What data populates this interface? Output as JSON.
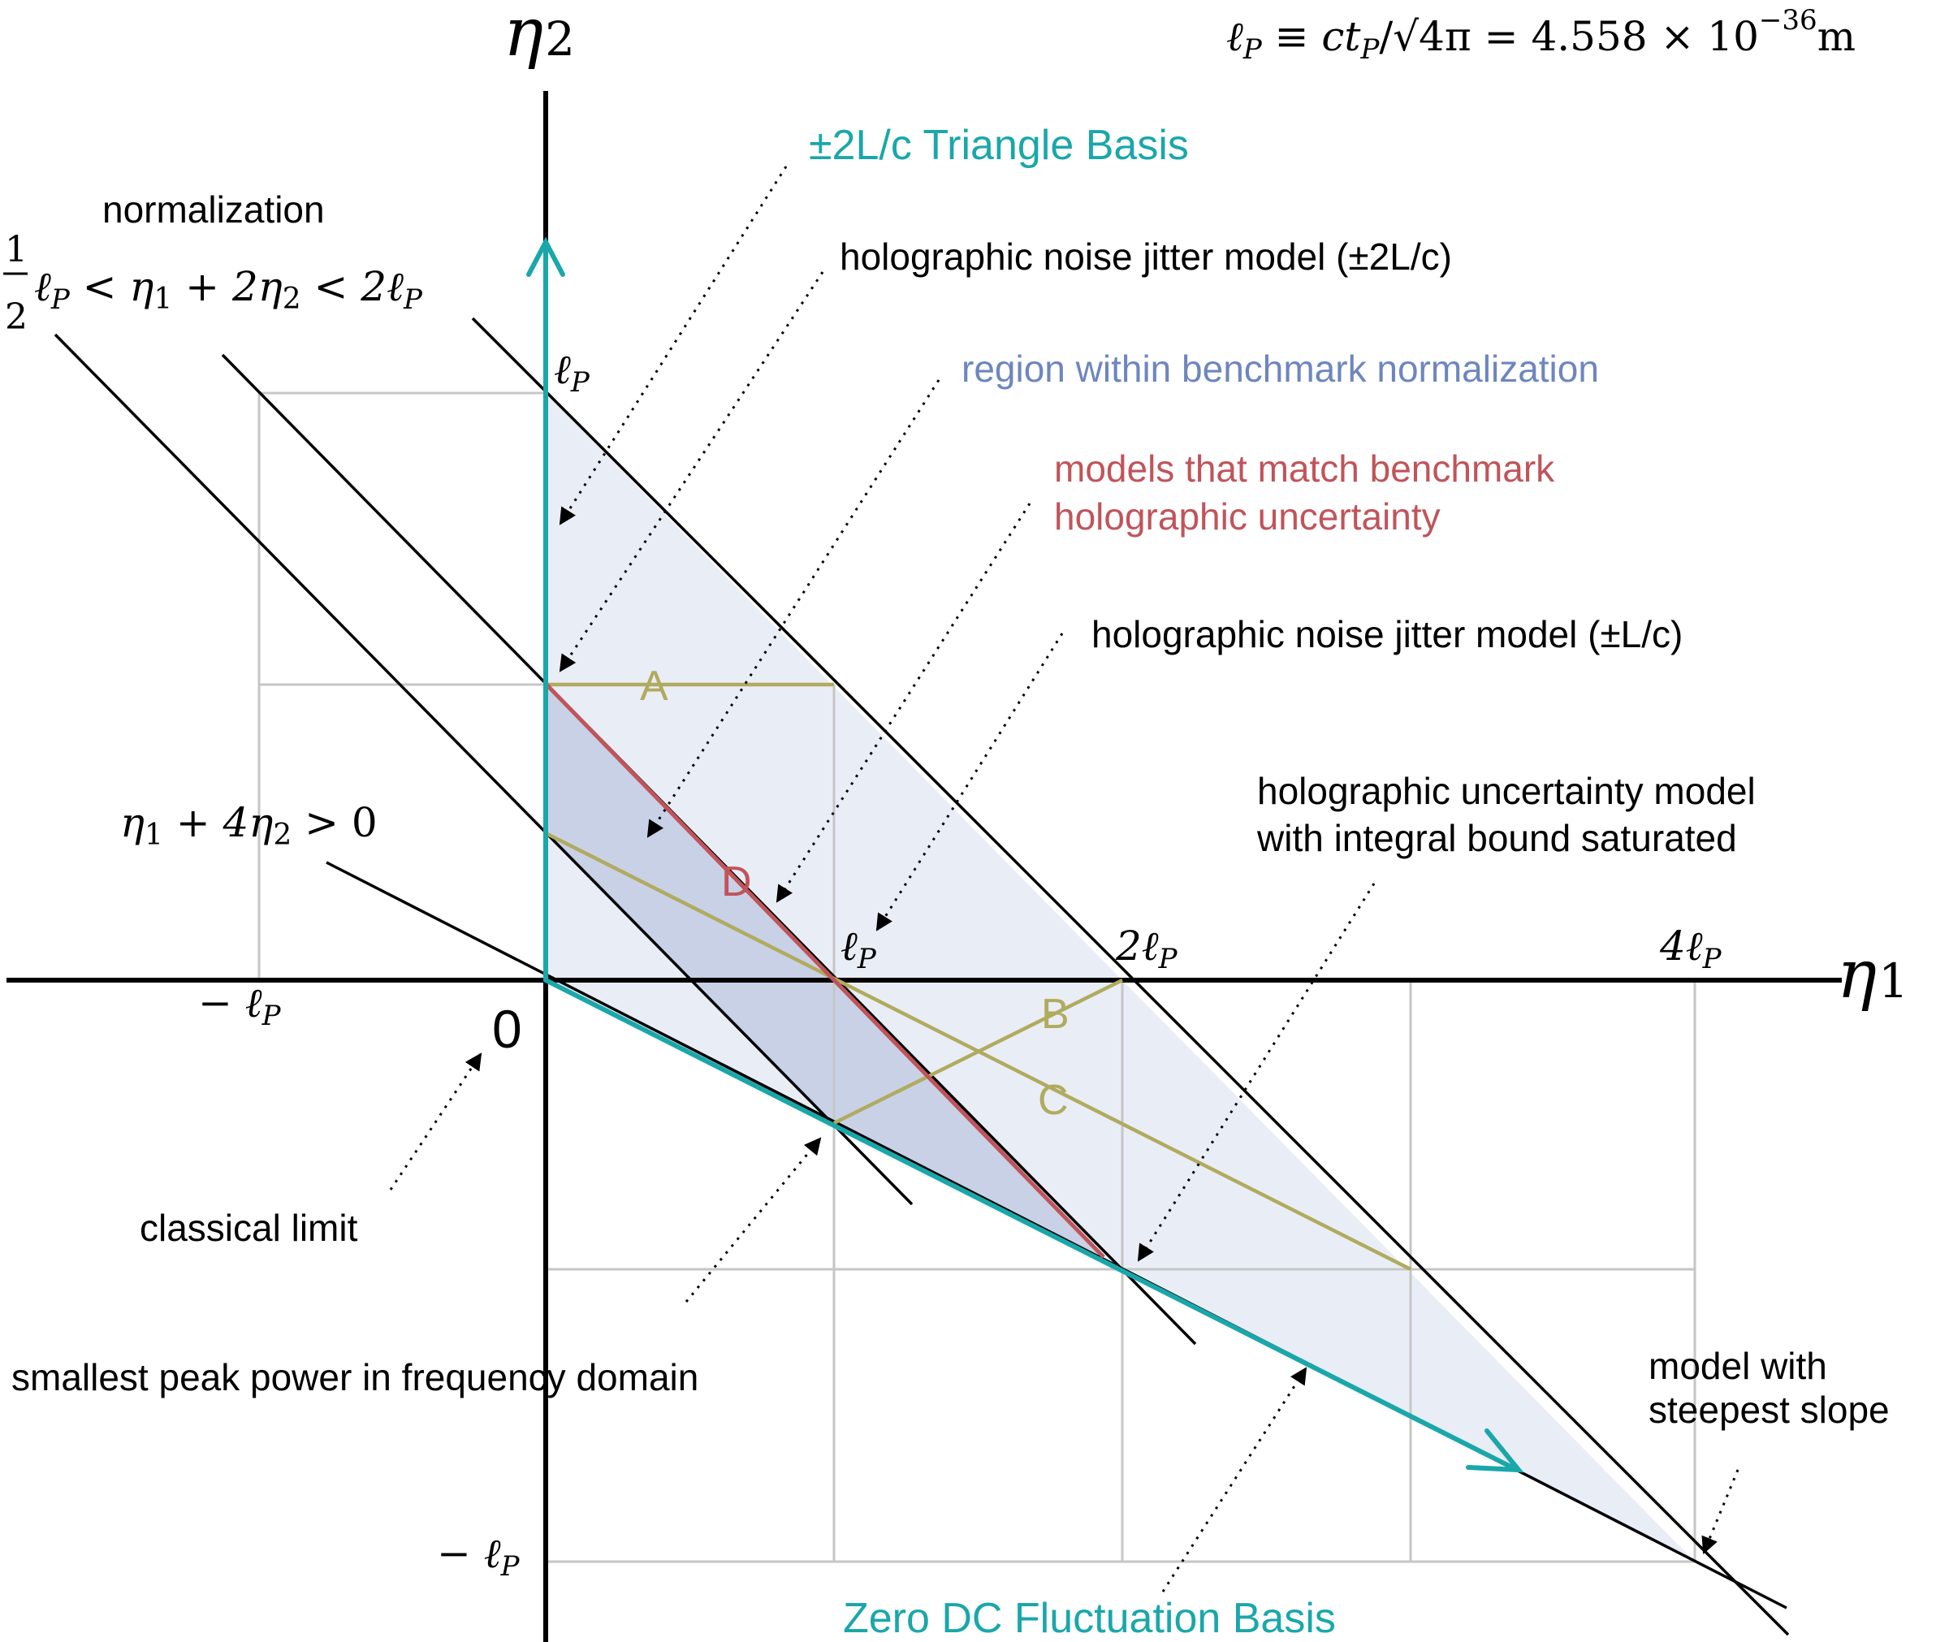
{
  "axes": {
    "x_label": "η",
    "x_sub": "1",
    "y_label": "η",
    "y_sub": "2",
    "origin": "0"
  },
  "ticks": {
    "x_neg_lp": "− ℓ",
    "x_lp": "ℓ",
    "x_2lp": "2ℓ",
    "x_4lp": "4ℓ",
    "y_lp": "ℓ",
    "y_neg_lp": "− ℓ",
    "sub_P": "P"
  },
  "formula": {
    "planck_def_lhs": "ℓ",
    "planck_def_mid": " ≡ ct",
    "planck_def_sqrt": "/√4π = 4.558 × 10",
    "planck_def_exp": "−36",
    "planck_def_unit": "m",
    "norm_frac_num": "1",
    "norm_frac_den": "2",
    "norm_ineq_a": "ℓ",
    "norm_ineq_b": " < η",
    "norm_ineq_c": " + 2η",
    "norm_ineq_d": " < 2ℓ",
    "positivity": "η",
    "positivity_b": " + 4η",
    "positivity_c": " > 0"
  },
  "labels": {
    "triangle_basis": "±2L/c Triangle Basis",
    "normalization": "normalization",
    "jitter_2l": "holographic noise jitter model  (±2L/c)",
    "region_norm": "region within benchmark normalization",
    "match_line1": "models that match benchmark",
    "match_line2": "holographic uncertainty",
    "jitter_l": "holographic noise jitter model  (±L/c)",
    "uncert_line1": "holographic uncertainty model",
    "uncert_line2": "with integral bound saturated",
    "classical": "classical limit",
    "smallest_peak": "smallest peak power in frequency domain",
    "steepest_line1": "model with",
    "steepest_line2": "steepest slope",
    "zero_dc": "Zero DC Fluctuation Basis",
    "point_a": "A",
    "point_b": "B",
    "point_c": "C",
    "point_d": "D"
  },
  "colors": {
    "axis": "#000000",
    "grid": "#c6c6c6",
    "teal": "#1aa7aa",
    "olive": "#b0ab5e",
    "red": "#c0545a",
    "blue_text": "#6e86bf",
    "region_light": "#e9edf6",
    "region_dark": "#c8d1e6"
  }
}
